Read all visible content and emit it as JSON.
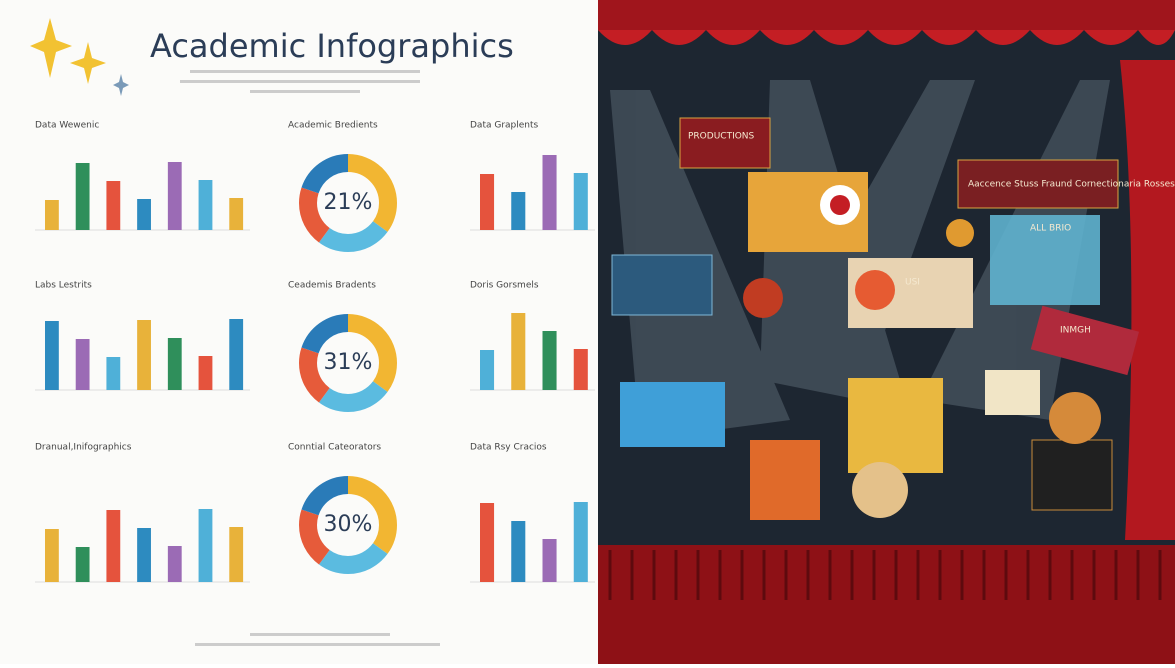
{
  "header": {
    "title": "Academic Infographics"
  },
  "panels": [
    {
      "title": "Data Wewenic"
    },
    {
      "title": "Academic Bredients",
      "center_label": "21%"
    },
    {
      "title": "Data Graplents"
    },
    {
      "title": "Labs Lestrits"
    },
    {
      "title": "Ceademis Bradents",
      "center_label": "31%"
    },
    {
      "title": "Doris Gorsmels"
    },
    {
      "title": "Dranual,Inifographics"
    },
    {
      "title": "Conntial Cateorators",
      "center_label": "30%"
    },
    {
      "title": "Data Rsy Cracios"
    }
  ],
  "stage": {
    "signs": [
      "PRODUCTIONS",
      "Aaccence Stuss Fraund Cornectionaria Rosses",
      "ALL BRIO",
      "USI",
      "INMGH"
    ]
  }
}
